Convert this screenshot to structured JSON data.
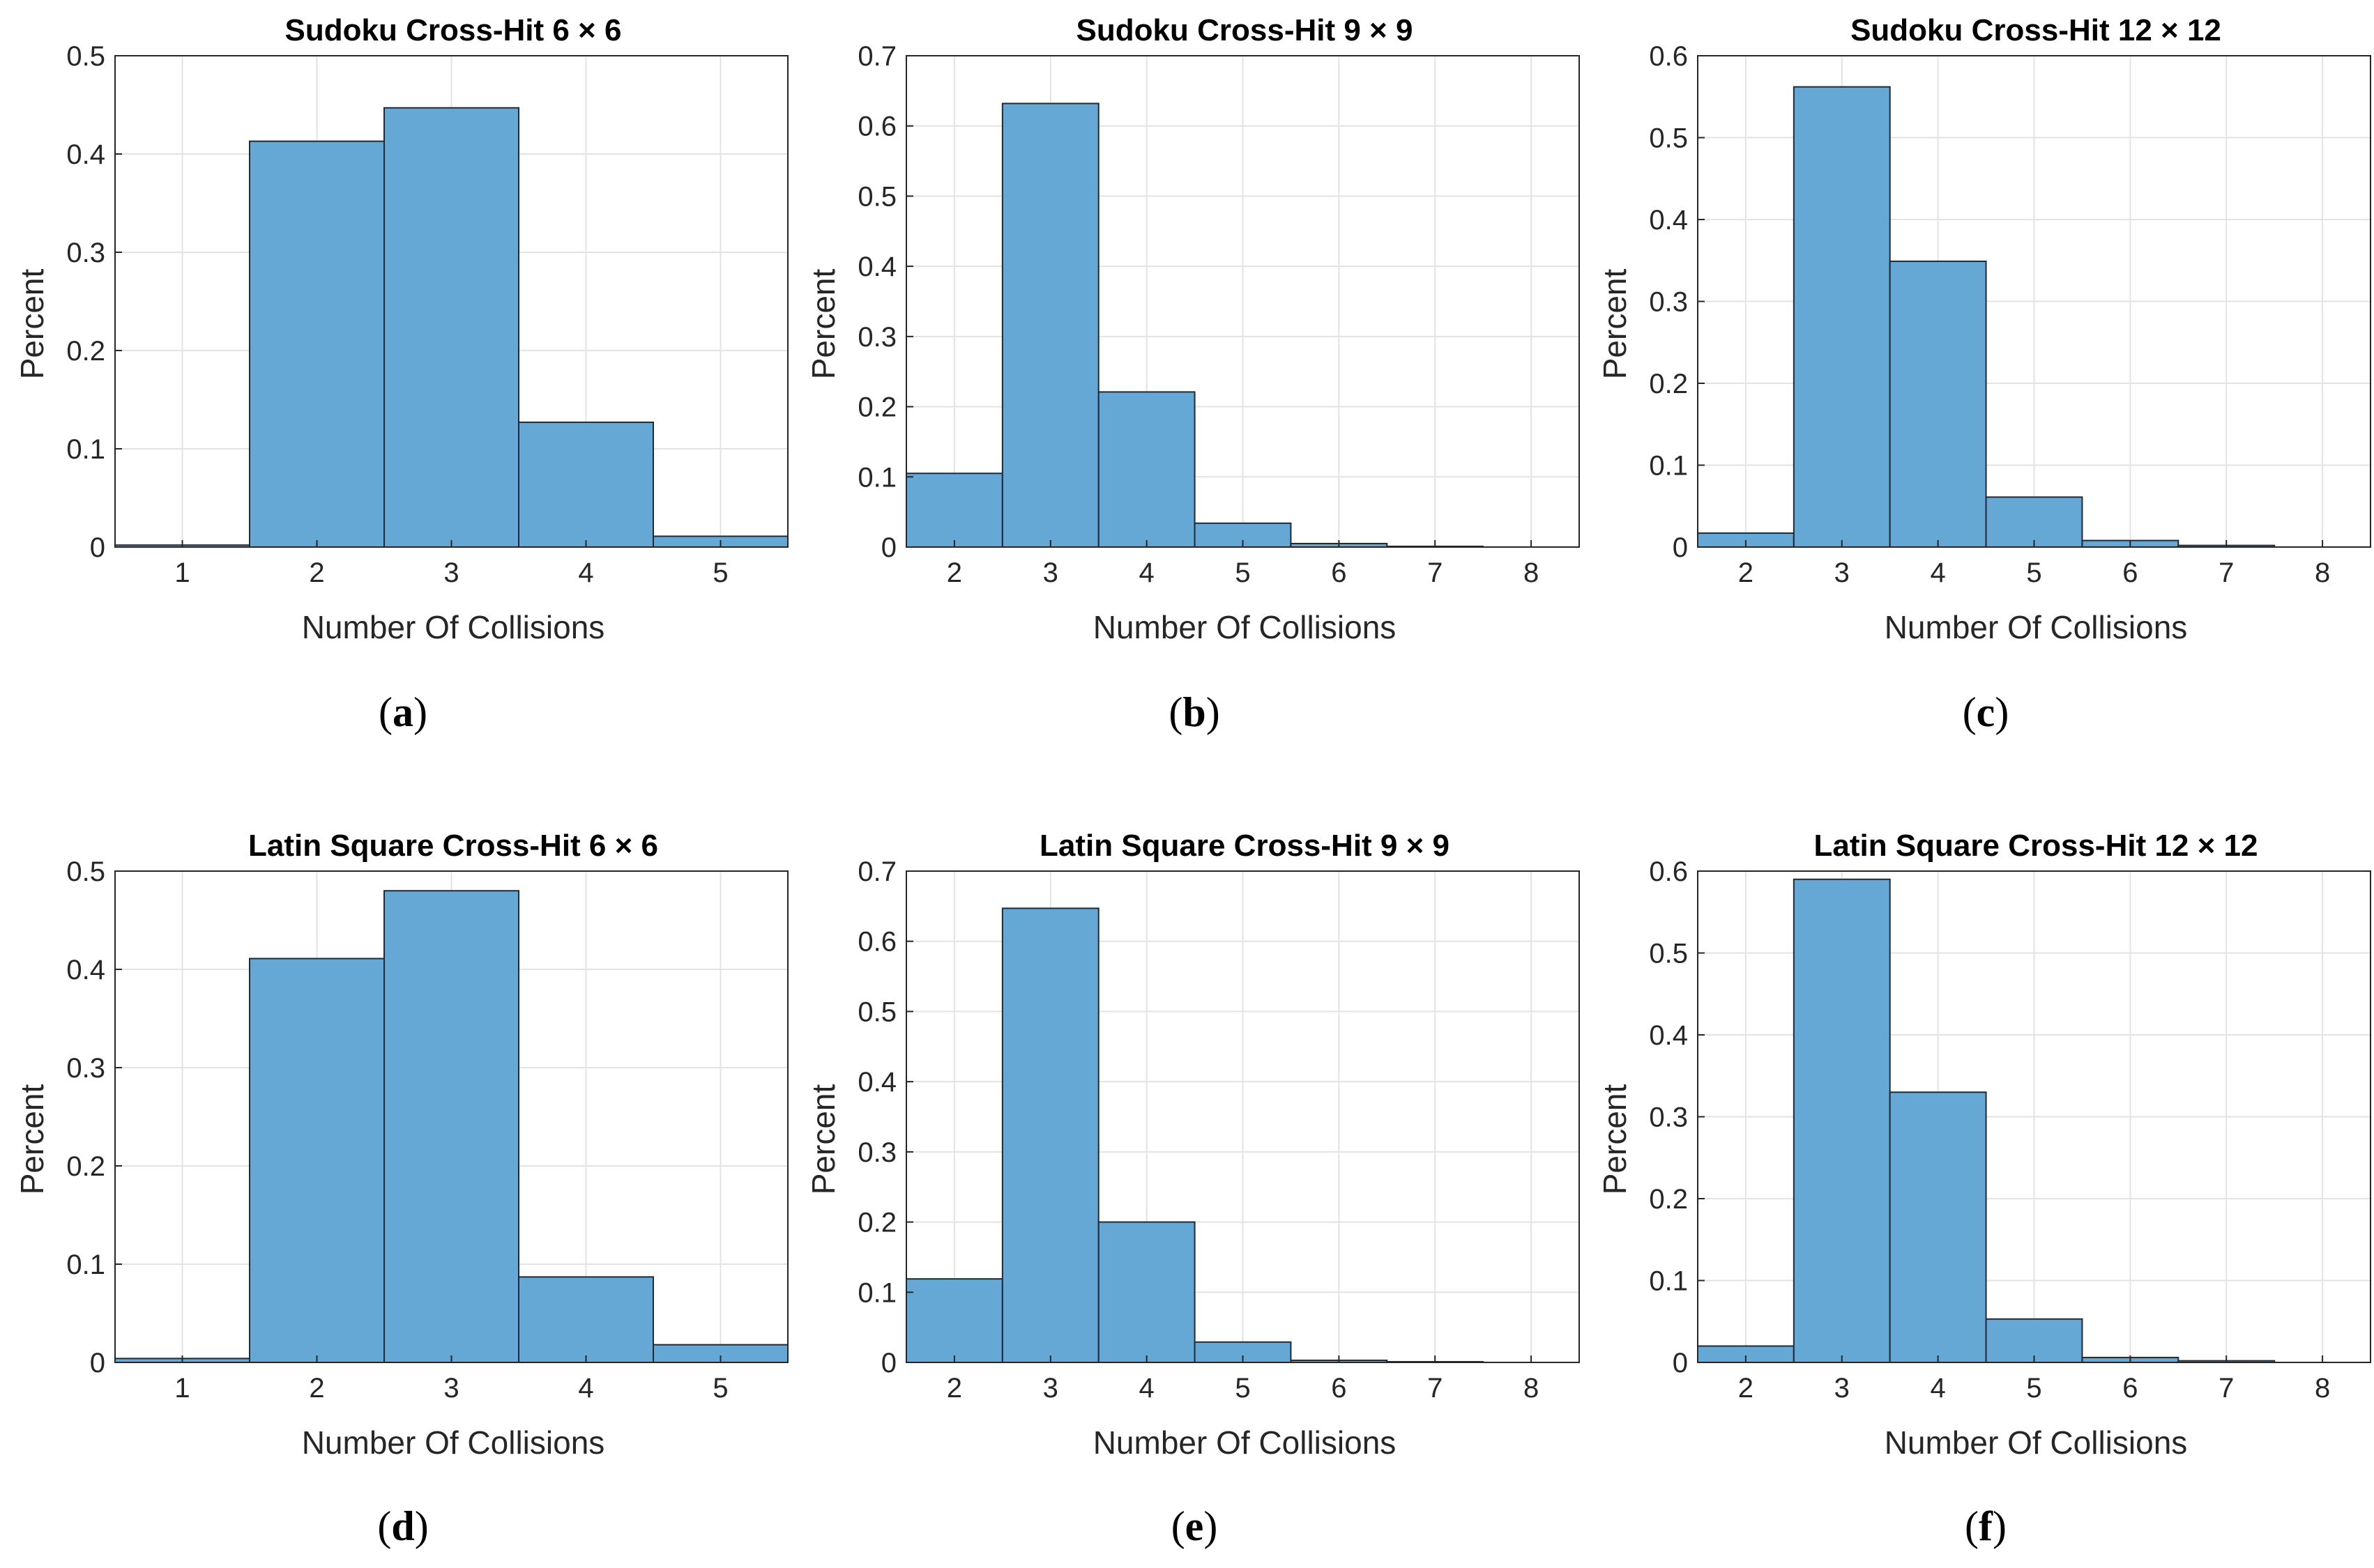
{
  "style": {
    "bar_fill": "#65a8d6",
    "bar_edge": "#1f2a35",
    "grid": "#e3e3e3",
    "axis": "#262626"
  },
  "chart_data": [
    {
      "type": "bar",
      "title": "Sudoku Cross-Hit 6 × 6",
      "caption": {
        "open": "(",
        "letter": "a",
        "close": ")"
      },
      "xlabel": "Number Of Collisions",
      "ylabel": "Percent",
      "categories": [
        "1",
        "2",
        "3",
        "4",
        "5"
      ],
      "values": [
        0.002,
        0.413,
        0.447,
        0.127,
        0.011
      ],
      "xlim": [
        0.5,
        5.5
      ],
      "ylim": [
        0,
        0.5
      ],
      "yticks": [
        0,
        0.1,
        0.2,
        0.3,
        0.4,
        0.5
      ],
      "ytick_labels": [
        "0",
        "0.1",
        "0.2",
        "0.3",
        "0.4",
        "0.5"
      ],
      "grid": true
    },
    {
      "type": "bar",
      "title": "Sudoku Cross-Hit 9 × 9",
      "caption": {
        "open": "(",
        "letter": "b",
        "close": ")"
      },
      "xlabel": "Number Of Collisions",
      "ylabel": "Percent",
      "categories": [
        "2",
        "3",
        "4",
        "5",
        "6",
        "7",
        "8"
      ],
      "values": [
        0.105,
        0.632,
        0.221,
        0.034,
        0.005,
        0.001,
        0.0
      ],
      "xlim": [
        1.5,
        8.5
      ],
      "ylim": [
        0,
        0.7
      ],
      "yticks": [
        0,
        0.1,
        0.2,
        0.3,
        0.4,
        0.5,
        0.6,
        0.7
      ],
      "ytick_labels": [
        "0",
        "0.1",
        "0.2",
        "0.3",
        "0.4",
        "0.5",
        "0.6",
        "0.7"
      ],
      "grid": true
    },
    {
      "type": "bar",
      "title": "Sudoku Cross-Hit 12 × 12",
      "caption": {
        "open": "(",
        "letter": "c",
        "close": ")"
      },
      "xlabel": "Number Of Collisions",
      "ylabel": "Percent",
      "categories": [
        "2",
        "3",
        "4",
        "5",
        "6",
        "7",
        "8"
      ],
      "values": [
        0.017,
        0.562,
        0.349,
        0.061,
        0.008,
        0.002,
        0.0
      ],
      "xlim": [
        1.5,
        8.5
      ],
      "ylim": [
        0,
        0.6
      ],
      "yticks": [
        0,
        0.1,
        0.2,
        0.3,
        0.4,
        0.5,
        0.6
      ],
      "ytick_labels": [
        "0",
        "0.1",
        "0.2",
        "0.3",
        "0.4",
        "0.5",
        "0.6"
      ],
      "grid": true
    },
    {
      "type": "bar",
      "title": "Latin Square Cross-Hit 6 × 6",
      "caption": {
        "open": "(",
        "letter": "d",
        "close": ")"
      },
      "xlabel": "Number Of Collisions",
      "ylabel": "Percent",
      "categories": [
        "1",
        "2",
        "3",
        "4",
        "5"
      ],
      "values": [
        0.004,
        0.411,
        0.48,
        0.087,
        0.018
      ],
      "xlim": [
        0.5,
        5.5
      ],
      "ylim": [
        0,
        0.5
      ],
      "yticks": [
        0,
        0.1,
        0.2,
        0.3,
        0.4,
        0.5
      ],
      "ytick_labels": [
        "0",
        "0.1",
        "0.2",
        "0.3",
        "0.4",
        "0.5"
      ],
      "grid": true
    },
    {
      "type": "bar",
      "title": "Latin Square Cross-Hit 9 × 9",
      "caption": {
        "open": "(",
        "letter": "e",
        "close": ")"
      },
      "xlabel": "Number Of Collisions",
      "ylabel": "Percent",
      "categories": [
        "2",
        "3",
        "4",
        "5",
        "6",
        "7",
        "8"
      ],
      "values": [
        0.119,
        0.647,
        0.2,
        0.029,
        0.003,
        0.001,
        0.0
      ],
      "xlim": [
        1.5,
        8.5
      ],
      "ylim": [
        0,
        0.7
      ],
      "yticks": [
        0,
        0.1,
        0.2,
        0.3,
        0.4,
        0.5,
        0.6,
        0.7
      ],
      "ytick_labels": [
        "0",
        "0.1",
        "0.2",
        "0.3",
        "0.4",
        "0.5",
        "0.6",
        "0.7"
      ],
      "grid": true
    },
    {
      "type": "bar",
      "title": "Latin Square Cross-Hit 12 × 12",
      "caption": {
        "open": "(",
        "letter": "f",
        "close": ")"
      },
      "xlabel": "Number Of Collisions",
      "ylabel": "Percent",
      "categories": [
        "2",
        "3",
        "4",
        "5",
        "6",
        "7",
        "8"
      ],
      "values": [
        0.02,
        0.59,
        0.33,
        0.053,
        0.006,
        0.002,
        0.0
      ],
      "xlim": [
        1.5,
        8.5
      ],
      "ylim": [
        0,
        0.6
      ],
      "yticks": [
        0,
        0.1,
        0.2,
        0.3,
        0.4,
        0.5,
        0.6
      ],
      "ytick_labels": [
        "0",
        "0.1",
        "0.2",
        "0.3",
        "0.4",
        "0.5",
        "0.6"
      ],
      "grid": true
    }
  ]
}
